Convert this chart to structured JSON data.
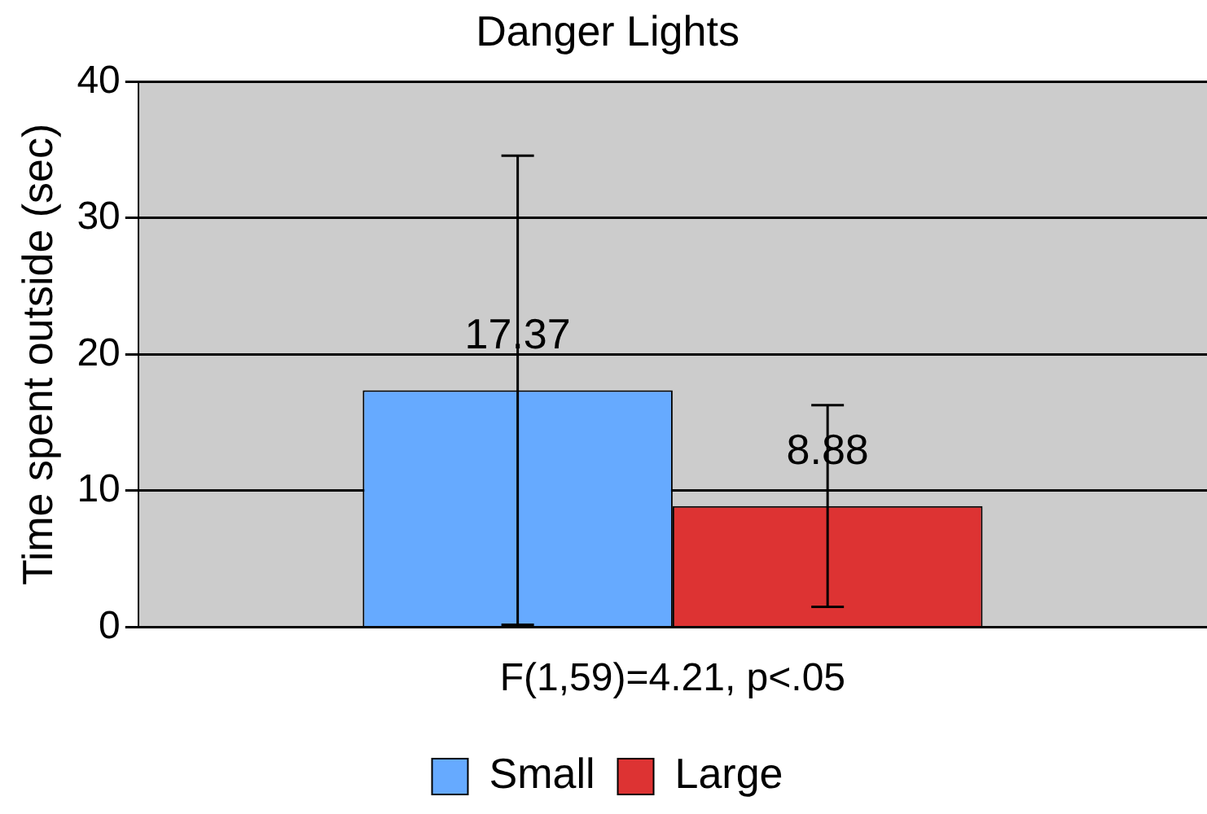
{
  "chart_data": {
    "type": "bar",
    "title": "Danger Lights",
    "ylabel": "Time spent outside (sec)",
    "categories": [
      "F(1,59)=4.21, p<.05"
    ],
    "series": [
      {
        "name": "Small",
        "color": "#66aaff",
        "values": [
          17.37
        ],
        "errors": [
          17.2
        ]
      },
      {
        "name": "Large",
        "color": "#dd3333",
        "values": [
          8.88
        ],
        "errors": [
          7.4
        ]
      }
    ],
    "ylim": [
      0,
      40
    ],
    "yticks": [
      0,
      10,
      20,
      30,
      40
    ],
    "grid": "y",
    "legend": "bottom",
    "data_labels": true
  }
}
